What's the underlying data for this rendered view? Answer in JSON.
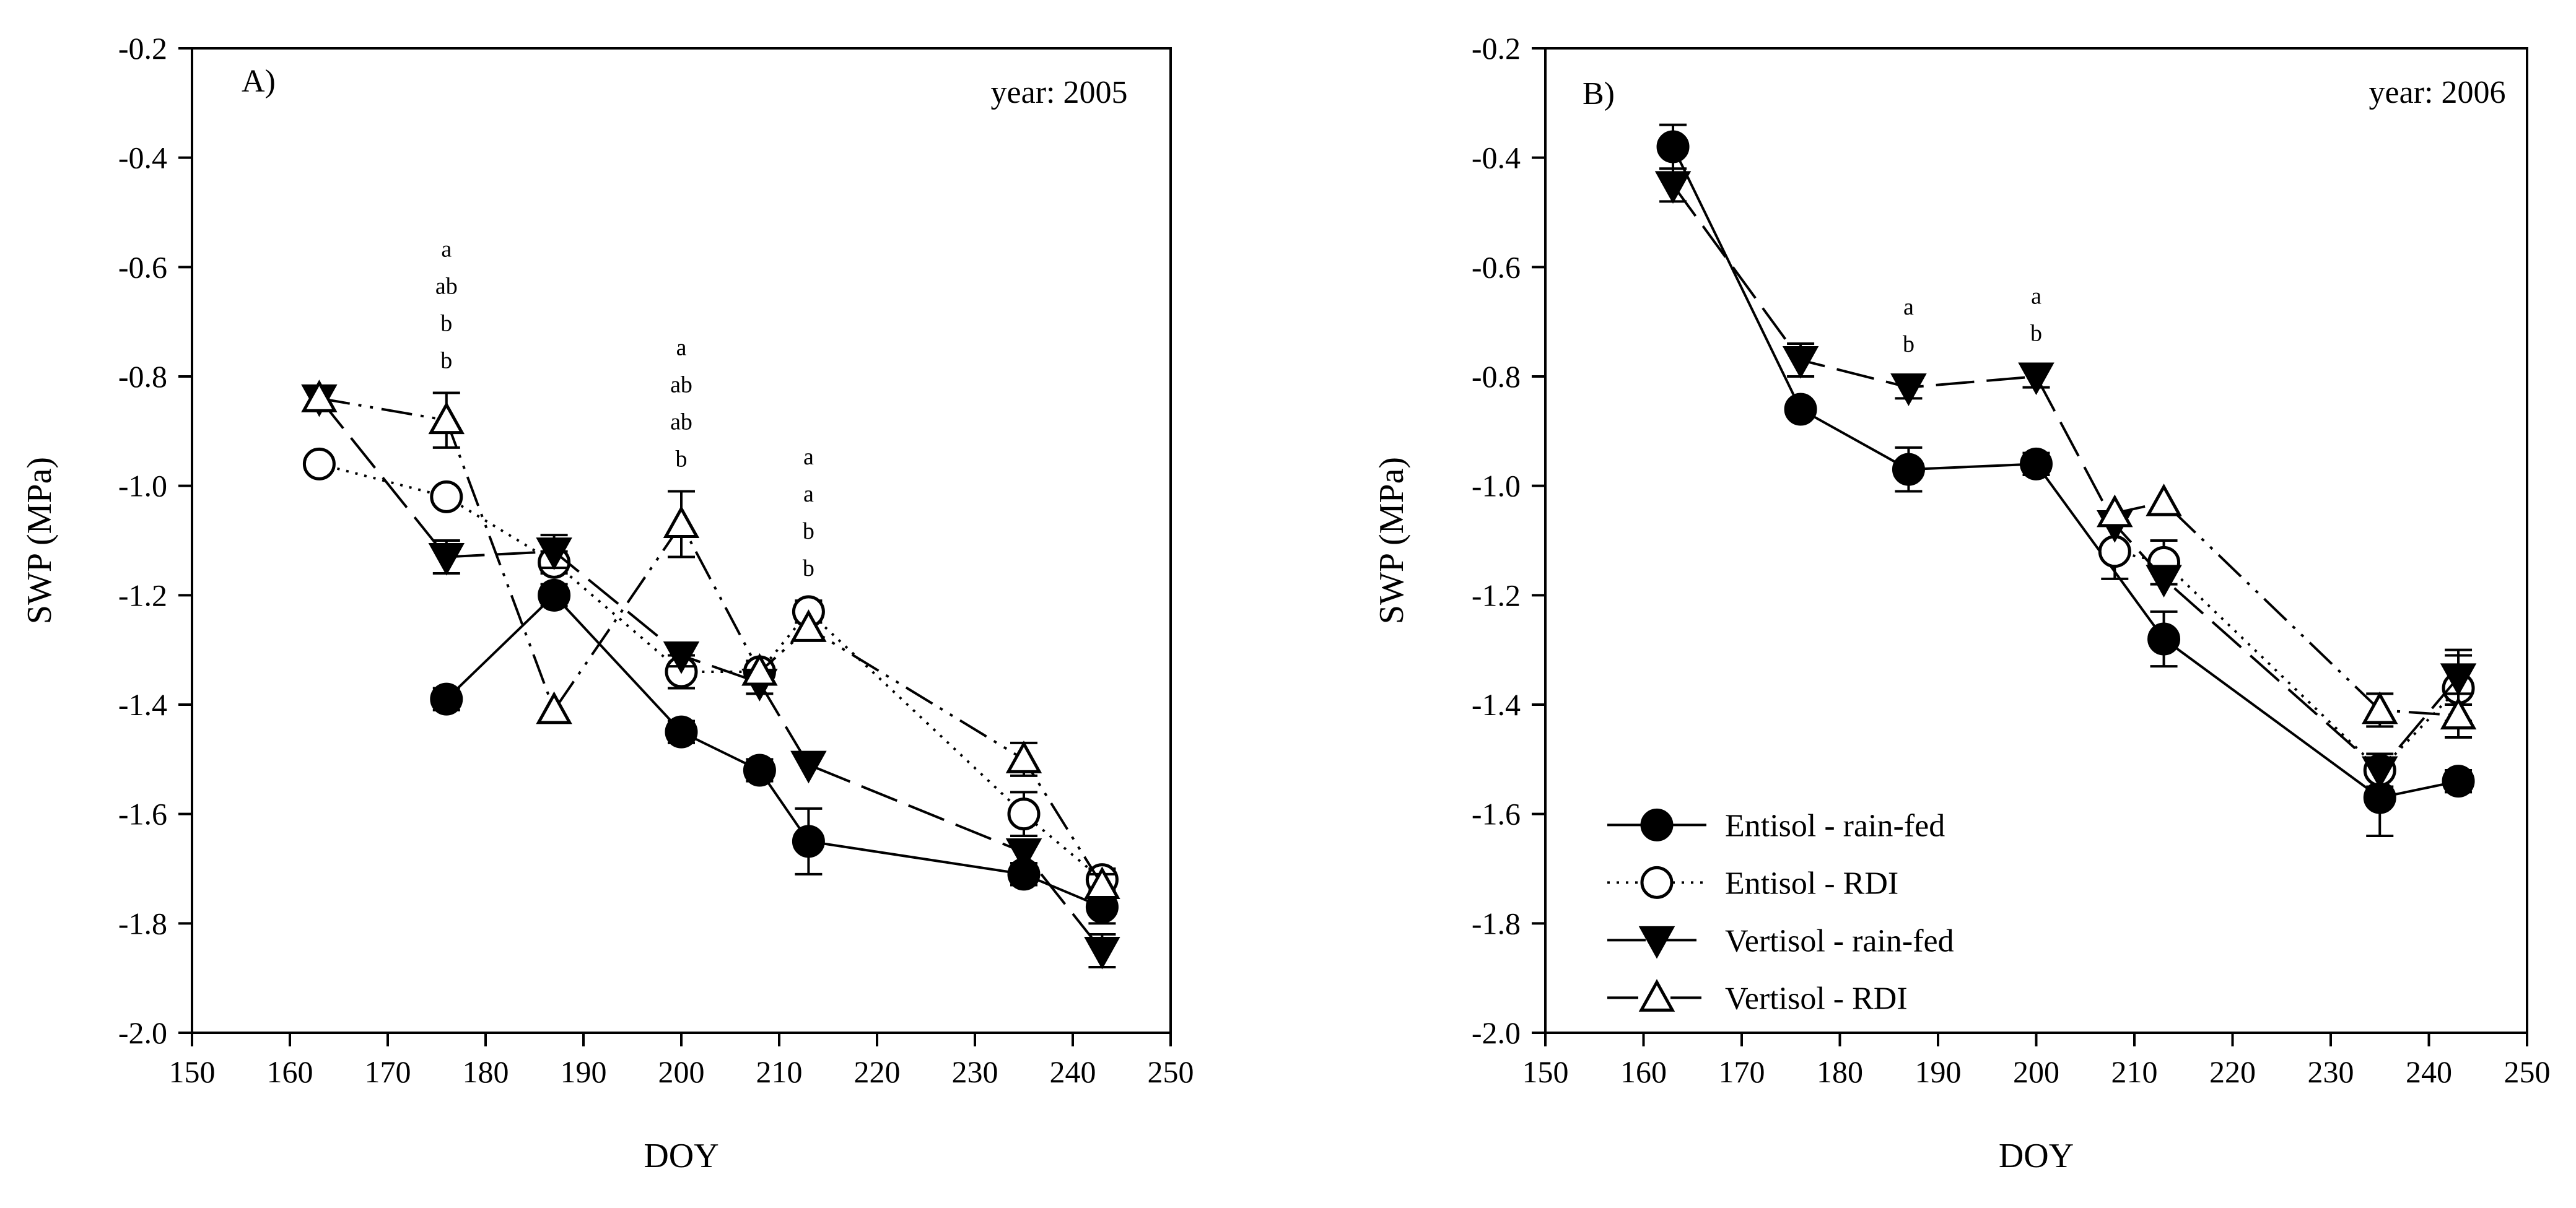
{
  "chart_data": [
    {
      "type": "line",
      "panel_label": "A)",
      "year_label": "year: 2005",
      "xlabel": "DOY",
      "ylabel": "SWP (MPa)",
      "xlim": [
        150,
        250
      ],
      "ylim": [
        -2.0,
        -0.2
      ],
      "x_ticks": [
        150,
        160,
        170,
        180,
        190,
        200,
        210,
        220,
        230,
        240,
        250
      ],
      "y_ticks": [
        -0.2,
        -0.4,
        -0.6,
        -0.8,
        -1.0,
        -1.2,
        -1.4,
        -1.6,
        -1.8,
        -2.0
      ],
      "series": [
        {
          "name": "Entisol - rain-fed",
          "x": [
            176,
            187,
            200,
            208,
            213,
            235,
            243
          ],
          "y": [
            -1.39,
            -1.2,
            -1.45,
            -1.52,
            -1.65,
            -1.71,
            -1.77
          ],
          "err": [
            0.02,
            0.02,
            0.02,
            0.02,
            0.06,
            0.02,
            0.03
          ]
        },
        {
          "name": "Entisol - RDI",
          "x": [
            163,
            176,
            187,
            200,
            208,
            213,
            235,
            243
          ],
          "y": [
            -0.96,
            -1.02,
            -1.14,
            -1.34,
            -1.34,
            -1.23,
            -1.6,
            -1.72
          ],
          "err": [
            0.0,
            0.0,
            0.02,
            0.03,
            0.02,
            0.02,
            0.04,
            0.02
          ]
        },
        {
          "name": "Vertisol - rain-fed",
          "x": [
            163,
            176,
            187,
            200,
            208,
            213,
            235,
            243
          ],
          "y": [
            -0.84,
            -1.13,
            -1.12,
            -1.31,
            -1.36,
            -1.51,
            -1.67,
            -1.85
          ],
          "err": [
            0.0,
            0.03,
            0.03,
            0.02,
            0.02,
            0.0,
            0.02,
            0.03
          ]
        },
        {
          "name": "Vertisol - RDI",
          "x": [
            163,
            176,
            187,
            200,
            208,
            213,
            235,
            243
          ],
          "y": [
            -0.84,
            -0.88,
            -1.41,
            -1.07,
            -1.34,
            -1.26,
            -1.5,
            -1.73
          ],
          "err": [
            0.0,
            0.05,
            0.0,
            0.06,
            0.0,
            0.0,
            0.03,
            0.02
          ]
        }
      ],
      "annotations": [
        {
          "x": 176,
          "letters": [
            "a",
            "ab",
            "b",
            "b"
          ]
        },
        {
          "x": 200,
          "letters": [
            "a",
            "ab",
            "ab",
            "b"
          ]
        },
        {
          "x": 213,
          "letters": [
            "a",
            "a",
            "b",
            "b"
          ]
        }
      ]
    },
    {
      "type": "line",
      "panel_label": "B)",
      "year_label": "year: 2006",
      "xlabel": "DOY",
      "ylabel": "SWP (MPa)",
      "xlim": [
        150,
        250
      ],
      "ylim": [
        -2.0,
        -0.2
      ],
      "x_ticks": [
        150,
        160,
        170,
        180,
        190,
        200,
        210,
        220,
        230,
        240,
        250
      ],
      "y_ticks": [
        -0.2,
        -0.4,
        -0.6,
        -0.8,
        -1.0,
        -1.2,
        -1.4,
        -1.6,
        -1.8,
        -2.0
      ],
      "series": [
        {
          "name": "Entisol - rain-fed",
          "x": [
            163,
            176,
            187,
            200,
            213,
            235,
            243
          ],
          "y": [
            -0.38,
            -0.86,
            -0.97,
            -0.96,
            -1.28,
            -1.57,
            -1.54
          ],
          "err": [
            0.04,
            0.0,
            0.04,
            0.02,
            0.05,
            0.07,
            0.02
          ]
        },
        {
          "name": "Entisol - RDI",
          "x": [
            208,
            213,
            235,
            243
          ],
          "y": [
            -1.12,
            -1.14,
            -1.52,
            -1.37
          ],
          "err": [
            0.05,
            0.04,
            0.03,
            0.06
          ]
        },
        {
          "name": "Vertisol - rain-fed",
          "x": [
            163,
            176,
            187,
            200,
            208,
            213,
            235,
            243
          ],
          "y": [
            -0.45,
            -0.77,
            -0.82,
            -0.8,
            -1.07,
            -1.17,
            -1.52,
            -1.35
          ],
          "err": [
            0.03,
            0.03,
            0.02,
            0.02,
            0.0,
            0.0,
            0.0,
            0.05
          ]
        },
        {
          "name": "Vertisol - RDI",
          "x": [
            208,
            213,
            235,
            243
          ],
          "y": [
            -1.05,
            -1.03,
            -1.41,
            -1.42
          ],
          "err": [
            0.0,
            0.0,
            0.03,
            0.04
          ]
        }
      ],
      "annotations": [
        {
          "x": 187,
          "letters": [
            "a",
            "b"
          ]
        },
        {
          "x": 200,
          "letters": [
            "a",
            "b"
          ]
        }
      ],
      "legend": {
        "placement": "bottom-left",
        "entries": [
          "Entisol - rain-fed",
          "Entisol - RDI",
          "Vertisol - rain-fed",
          "Vertisol - RDI"
        ]
      }
    }
  ]
}
